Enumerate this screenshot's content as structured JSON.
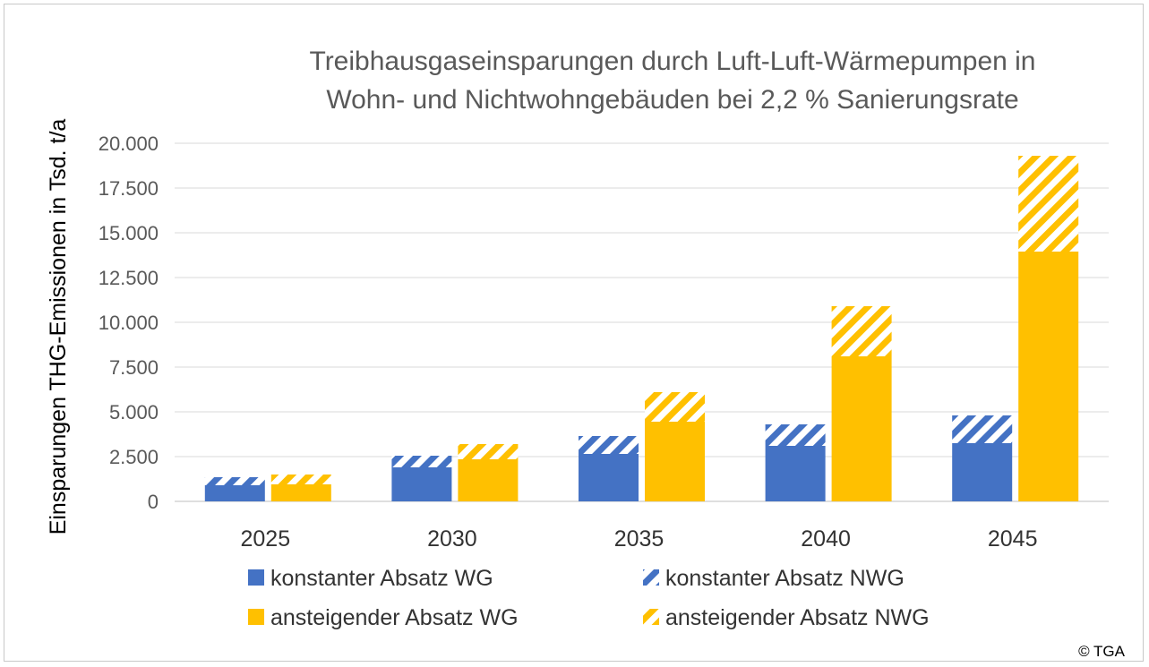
{
  "chart_data": {
    "type": "bar",
    "stacked": true,
    "title_line1": "Treibhausgaseinsparungen durch Luft-Luft-Wärmepumpen in",
    "title_line2": "Wohn- und Nichtwohngebäuden bei 2,2 % Sanierungsrate",
    "ylabel": "Einsparungen THG-Emissionen in Tsd. t/a",
    "xlabel": "",
    "categories": [
      "2025",
      "2030",
      "2035",
      "2040",
      "2045"
    ],
    "ylim": [
      0,
      20000
    ],
    "yticks": [
      0,
      2500,
      5000,
      7500,
      10000,
      12500,
      15000,
      17500,
      20000
    ],
    "ytick_labels": [
      "0",
      "2.500",
      "5.000",
      "7.500",
      "10.000",
      "12.500",
      "15.000",
      "17.500",
      "20.000"
    ],
    "grid": true,
    "groups": [
      {
        "stack": "konstant",
        "series": [
          {
            "name": "konstanter Absatz WG",
            "values": [
              900,
              1900,
              2650,
              3100,
              3250
            ],
            "color": "#4472c4",
            "pattern": "solid"
          },
          {
            "name": "konstanter Absatz NWG",
            "values": [
              450,
              650,
              1000,
              1200,
              1550
            ],
            "color": "#4472c4",
            "pattern": "hatch"
          }
        ]
      },
      {
        "stack": "ansteigend",
        "series": [
          {
            "name": "ansteigender Absatz WG",
            "values": [
              950,
              2350,
              4450,
              8100,
              13950
            ],
            "color": "#ffc000",
            "pattern": "solid"
          },
          {
            "name": "ansteigender Absatz NWG",
            "values": [
              550,
              850,
              1650,
              2800,
              5350
            ],
            "color": "#ffc000",
            "pattern": "hatch"
          }
        ]
      }
    ],
    "legend_position": "bottom"
  },
  "copyright": "© TGA"
}
